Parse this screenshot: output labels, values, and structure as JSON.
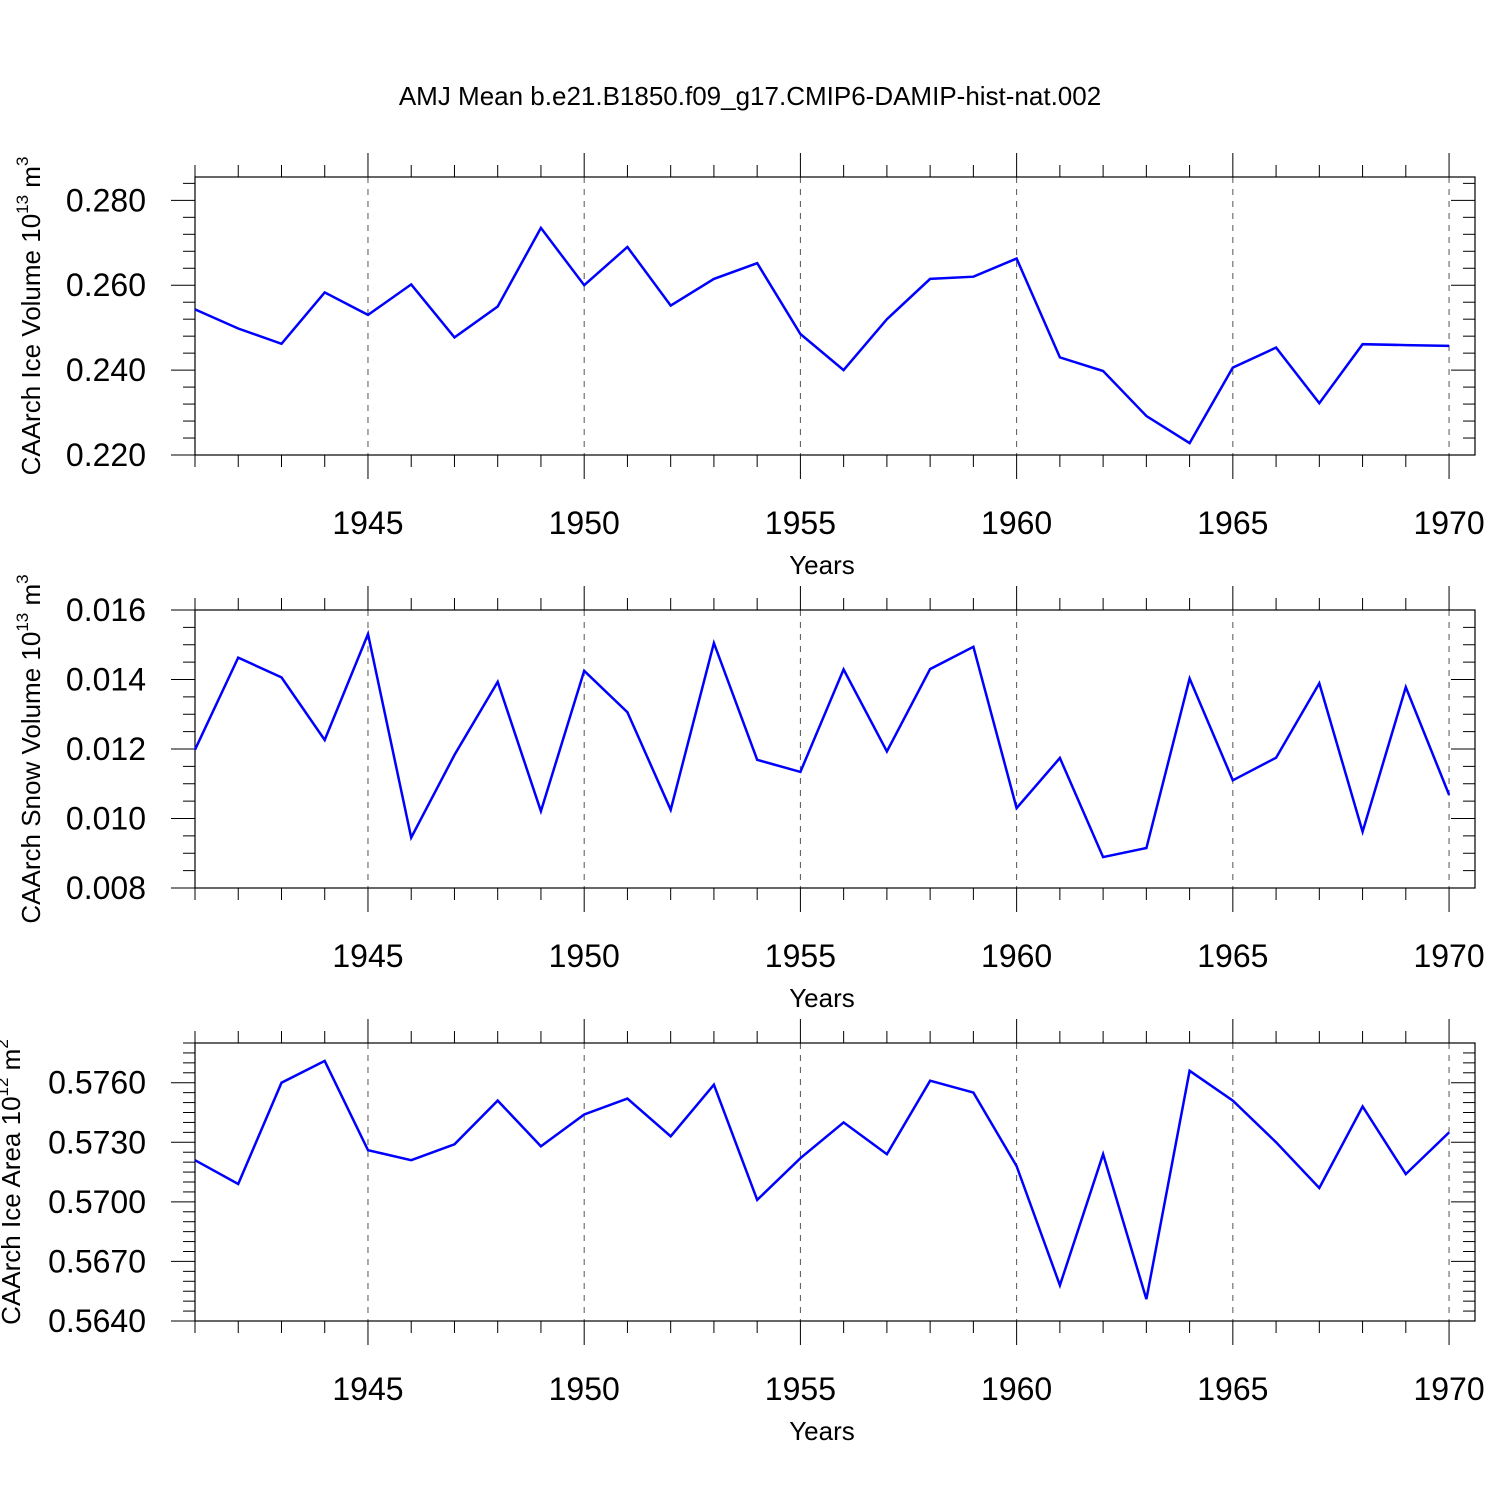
{
  "title": "AMJ Mean b.e21.B1850.f09_g17.CMIP6-DAMIP-hist-nat.002",
  "colors": {
    "line": "#0000ff",
    "axis": "#000000",
    "grid": "#555555"
  },
  "chart_data": [
    {
      "type": "line",
      "series_name": "CAArch Ice Volume",
      "ylabel": "CAArch Ice Volume 10",
      "ylabel_exp": "13",
      "ylabel_unit": "m",
      "ylabel_unit_exp": "3",
      "xlabel": "Years",
      "x": [
        1941,
        1942,
        1943,
        1944,
        1945,
        1946,
        1947,
        1948,
        1949,
        1950,
        1951,
        1952,
        1953,
        1954,
        1955,
        1956,
        1957,
        1958,
        1959,
        1960,
        1961,
        1962,
        1963,
        1964,
        1965,
        1966,
        1967,
        1968,
        1969,
        1970
      ],
      "values": [
        0.2543,
        0.2498,
        0.2462,
        0.2583,
        0.253,
        0.2602,
        0.2477,
        0.255,
        0.2735,
        0.26,
        0.269,
        0.2552,
        0.2615,
        0.2652,
        0.2485,
        0.24,
        0.252,
        0.2615,
        0.262,
        0.2663,
        0.243,
        0.2398,
        0.2292,
        0.2228,
        0.2406,
        0.2453,
        0.2322,
        0.2461,
        0.2459,
        0.2457
      ],
      "xlim": [
        1941,
        1970
      ],
      "ylim": [
        0.22,
        0.2855
      ],
      "xticks": [
        "1945",
        "1950",
        "1955",
        "1960",
        "1965",
        "1970"
      ],
      "yticks": [
        "0.280",
        "0.260",
        "0.240",
        "0.220"
      ],
      "grid": "vertical dashed at major x ticks"
    },
    {
      "type": "line",
      "series_name": "CAArch Snow Volume",
      "ylabel": "CAArch Snow Volume 10",
      "ylabel_exp": "13",
      "ylabel_unit": "m",
      "ylabel_unit_exp": "3",
      "xlabel": "Years",
      "x": [
        1941,
        1942,
        1943,
        1944,
        1945,
        1946,
        1947,
        1948,
        1949,
        1950,
        1951,
        1952,
        1953,
        1954,
        1955,
        1956,
        1957,
        1958,
        1959,
        1960,
        1961,
        1962,
        1963,
        1964,
        1965,
        1966,
        1967,
        1968,
        1969,
        1970
      ],
      "values": [
        0.01198,
        0.01463,
        0.01406,
        0.01226,
        0.01531,
        0.00945,
        0.01183,
        0.01393,
        0.01021,
        0.01425,
        0.01306,
        0.01025,
        0.01505,
        0.01169,
        0.01134,
        0.01429,
        0.01193,
        0.0143,
        0.01494,
        0.0103,
        0.01174,
        0.00889,
        0.00915,
        0.01403,
        0.0111,
        0.01175,
        0.01389,
        0.00962,
        0.01378,
        0.01068
      ],
      "xlim": [
        1941,
        1970
      ],
      "ylim": [
        0.008,
        0.016
      ],
      "xticks": [
        "1945",
        "1950",
        "1955",
        "1960",
        "1965",
        "1970"
      ],
      "yticks": [
        "0.016",
        "0.014",
        "0.012",
        "0.010",
        "0.008"
      ],
      "grid": "vertical dashed at major x ticks"
    },
    {
      "type": "line",
      "series_name": "CAArch Ice Area",
      "ylabel": "CAArch Ice Area 10",
      "ylabel_exp": "12",
      "ylabel_unit": "m",
      "ylabel_unit_exp": "2",
      "xlabel": "Years",
      "x": [
        1941,
        1942,
        1943,
        1944,
        1945,
        1946,
        1947,
        1948,
        1949,
        1950,
        1951,
        1952,
        1953,
        1954,
        1955,
        1956,
        1957,
        1958,
        1959,
        1960,
        1961,
        1962,
        1963,
        1964,
        1965,
        1966,
        1967,
        1968,
        1969,
        1970
      ],
      "values": [
        0.5721,
        0.5709,
        0.576,
        0.5771,
        0.5726,
        0.5721,
        0.5729,
        0.5751,
        0.5728,
        0.5744,
        0.5752,
        0.5733,
        0.5759,
        0.5701,
        0.5722,
        0.574,
        0.5724,
        0.5761,
        0.5755,
        0.5718,
        0.5658,
        0.5724,
        0.5651,
        0.5766,
        0.5751,
        0.573,
        0.5707,
        0.5748,
        0.5714,
        0.5735
      ],
      "xlim": [
        1941,
        1970
      ],
      "ylim": [
        0.564,
        0.578
      ],
      "xticks": [
        "1945",
        "1950",
        "1955",
        "1960",
        "1965",
        "1970"
      ],
      "yticks": [
        "0.5760",
        "0.5730",
        "0.5700",
        "0.5670",
        "0.5640"
      ],
      "grid": "vertical dashed at major x ticks"
    }
  ]
}
